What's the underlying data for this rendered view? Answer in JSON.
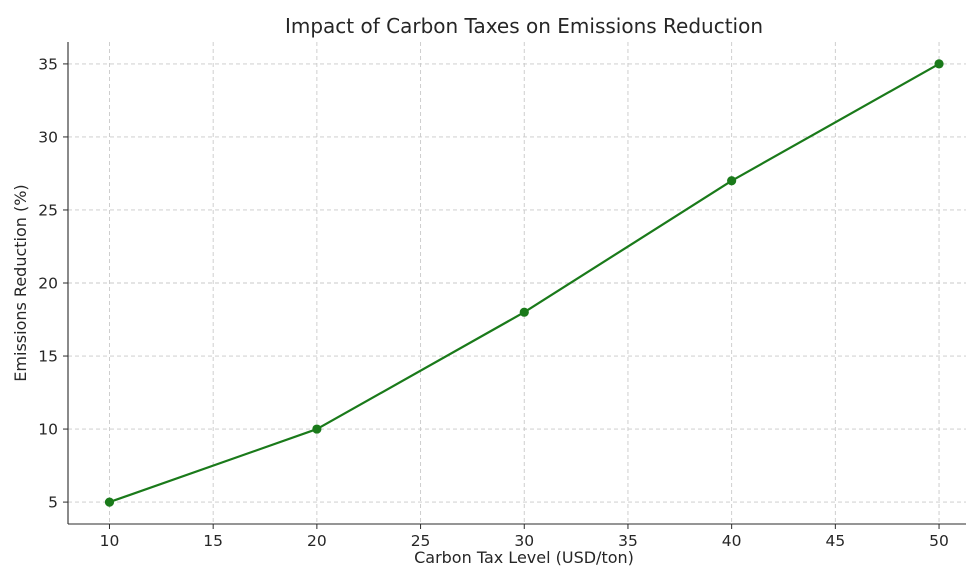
{
  "chart_data": {
    "type": "line",
    "title": "Impact of Carbon Taxes on Emissions Reduction",
    "xlabel": "Carbon Tax Level (USD/ton)",
    "ylabel": "Emissions Reduction (%)",
    "x": [
      10,
      20,
      30,
      40,
      50
    ],
    "series": [
      {
        "values": [
          5,
          10,
          18,
          27,
          35
        ],
        "color": "#1a7a1a",
        "marker": "circle"
      }
    ],
    "xticks": [
      10,
      15,
      20,
      25,
      30,
      35,
      40,
      45,
      50
    ],
    "yticks": [
      5,
      10,
      15,
      20,
      25,
      30,
      35
    ],
    "xlim": [
      8,
      51.3
    ],
    "ylim": [
      3.5,
      36.5
    ],
    "grid": true
  }
}
